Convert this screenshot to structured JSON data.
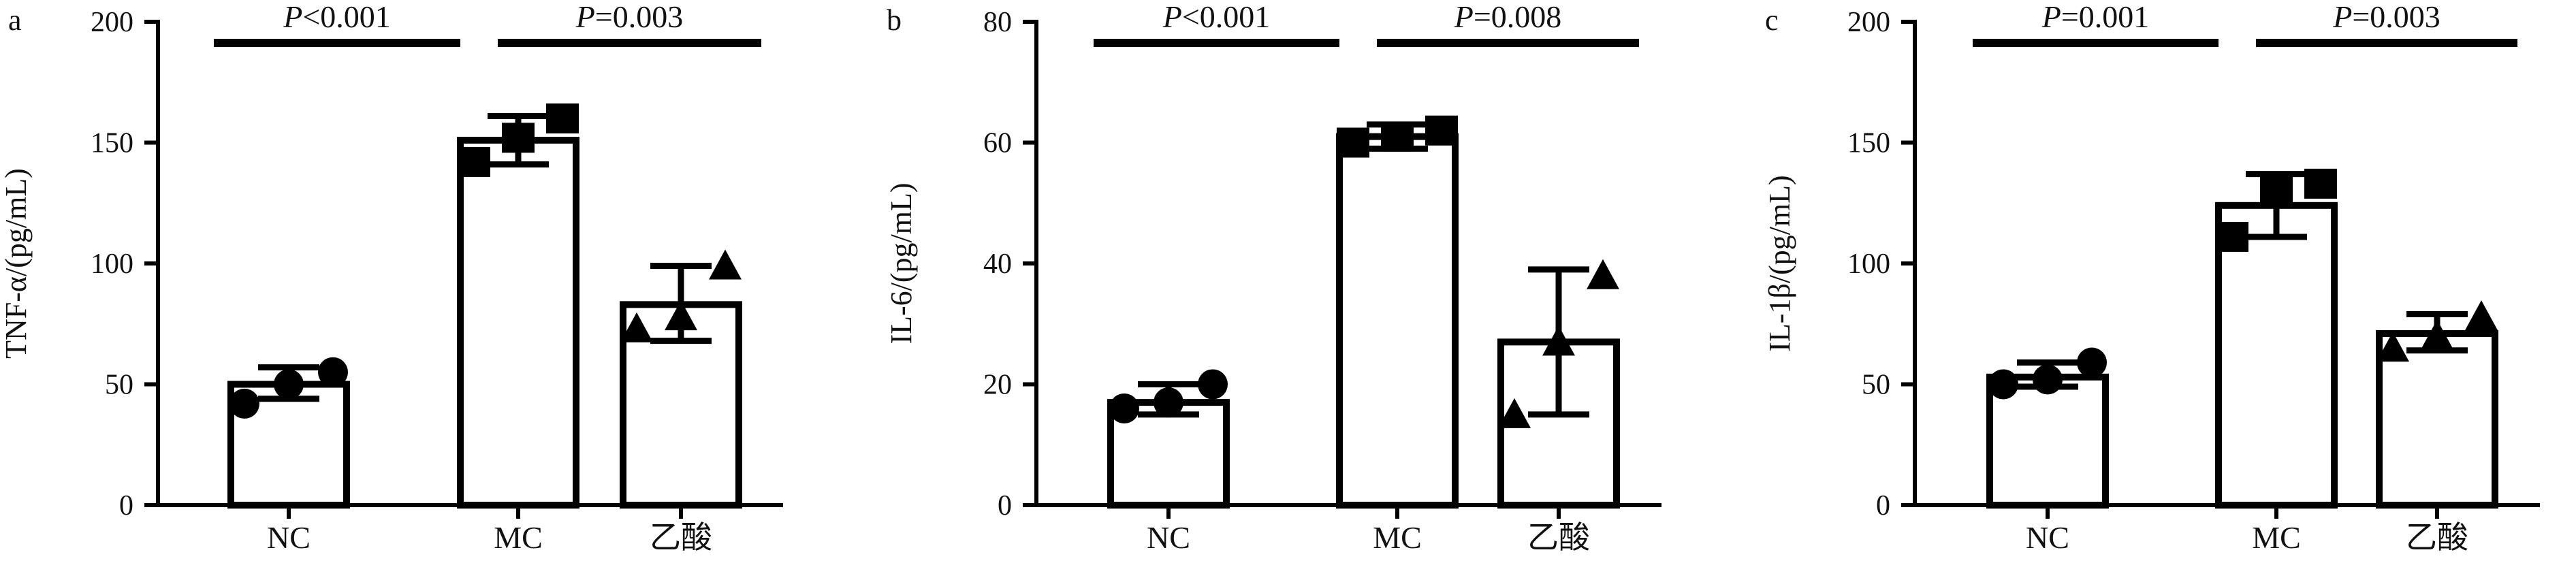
{
  "chart_data": [
    {
      "type": "bar",
      "panel": "a",
      "ylabel": "TNF-α/(pg/mL)",
      "ylim": [
        0,
        200
      ],
      "yticks": [
        0,
        50,
        100,
        150,
        200
      ],
      "categories": [
        "NC",
        "MC",
        "乙酸"
      ],
      "values": [
        50,
        151,
        83
      ],
      "error_low": [
        44,
        141,
        68
      ],
      "error_high": [
        57,
        161,
        99
      ],
      "points": [
        [
          42,
          50,
          55
        ],
        [
          142,
          152,
          160
        ],
        [
          73,
          78,
          99
        ]
      ],
      "markers": [
        "circle",
        "square",
        "triangle"
      ],
      "comparisons": [
        {
          "from": 0,
          "to": 1,
          "label": "P<0.001"
        },
        {
          "from": 1,
          "to": 2,
          "label": "P=0.003"
        }
      ]
    },
    {
      "type": "bar",
      "panel": "b",
      "ylabel": "IL-6/(pg/mL)",
      "ylim": [
        0,
        80
      ],
      "yticks": [
        0,
        20,
        40,
        60,
        80
      ],
      "categories": [
        "NC",
        "MC",
        "乙酸"
      ],
      "values": [
        17,
        61,
        27
      ],
      "error_low": [
        15,
        59,
        15
      ],
      "error_high": [
        20,
        63,
        39
      ],
      "points": [
        [
          16,
          17,
          20
        ],
        [
          60,
          61,
          62
        ],
        [
          15,
          27,
          38
        ]
      ],
      "markers": [
        "circle",
        "square",
        "triangle"
      ],
      "comparisons": [
        {
          "from": 0,
          "to": 1,
          "label": "P<0.001"
        },
        {
          "from": 1,
          "to": 2,
          "label": "P=0.008"
        }
      ]
    },
    {
      "type": "bar",
      "panel": "c",
      "ylabel": "IL-1β/(pg/mL)",
      "ylim": [
        0,
        200
      ],
      "yticks": [
        0,
        50,
        100,
        150,
        200
      ],
      "categories": [
        "NC",
        "MC",
        "乙酸"
      ],
      "values": [
        53,
        124,
        71
      ],
      "error_low": [
        49,
        111,
        64
      ],
      "error_high": [
        59,
        137,
        79
      ],
      "points": [
        [
          50,
          52,
          59
        ],
        [
          111,
          130,
          133
        ],
        [
          65,
          70,
          78
        ]
      ],
      "markers": [
        "circle",
        "square",
        "triangle"
      ],
      "comparisons": [
        {
          "from": 0,
          "to": 1,
          "label": "P=0.001"
        },
        {
          "from": 1,
          "to": 2,
          "label": "P=0.003"
        }
      ]
    }
  ]
}
